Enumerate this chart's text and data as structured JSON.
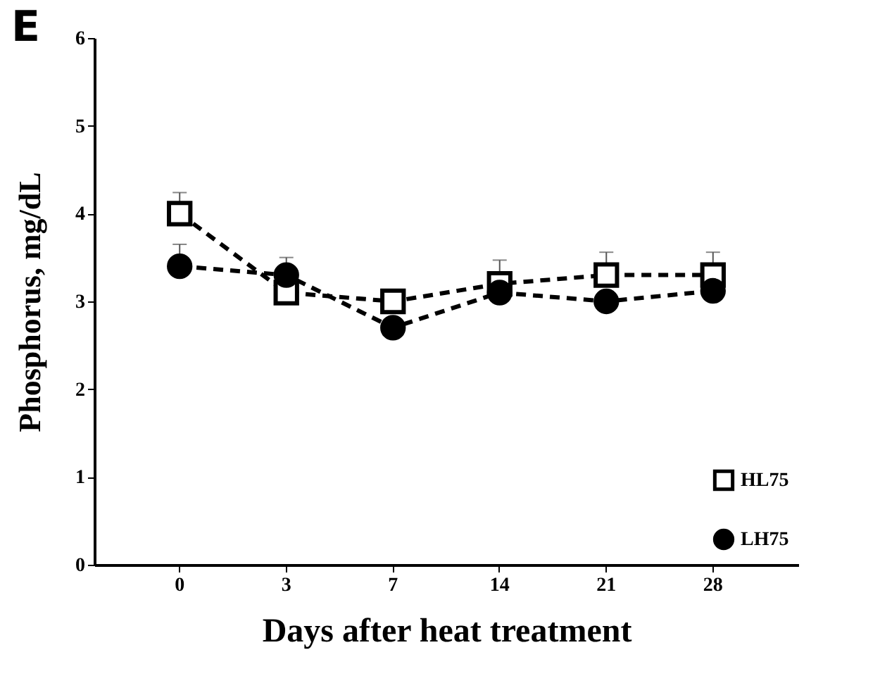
{
  "chart_data": {
    "type": "line",
    "xlabel": "Days after heat treatment",
    "ylabel": "Phosphorus, mg/dL",
    "annotations": [
      "E"
    ],
    "categories": [
      "0",
      "3",
      "7",
      "14",
      "21",
      "28"
    ],
    "series": [
      {
        "name": "HL75",
        "color": "#000000",
        "marker": "square",
        "values": [
          4.0,
          3.1,
          3.0,
          3.2,
          3.3,
          3.3
        ],
        "errors": [
          [
            4.0,
            4.24
          ],
          null,
          null,
          [
            3.2,
            3.47
          ],
          [
            3.3,
            3.56
          ],
          [
            3.3,
            3.56
          ]
        ]
      },
      {
        "name": "LH75",
        "color": "#000000",
        "marker": "circle",
        "values": [
          3.4,
          3.3,
          2.7,
          3.1,
          3.0,
          3.12
        ],
        "errors": [
          [
            3.4,
            3.65
          ],
          [
            3.3,
            3.5
          ],
          null,
          null,
          null,
          null
        ]
      }
    ],
    "ylim": [
      0,
      6
    ],
    "yticks": [
      0,
      1,
      2,
      3,
      4,
      5,
      6
    ],
    "grid": false,
    "legend": "bottom right",
    "line_style": "dashed"
  }
}
